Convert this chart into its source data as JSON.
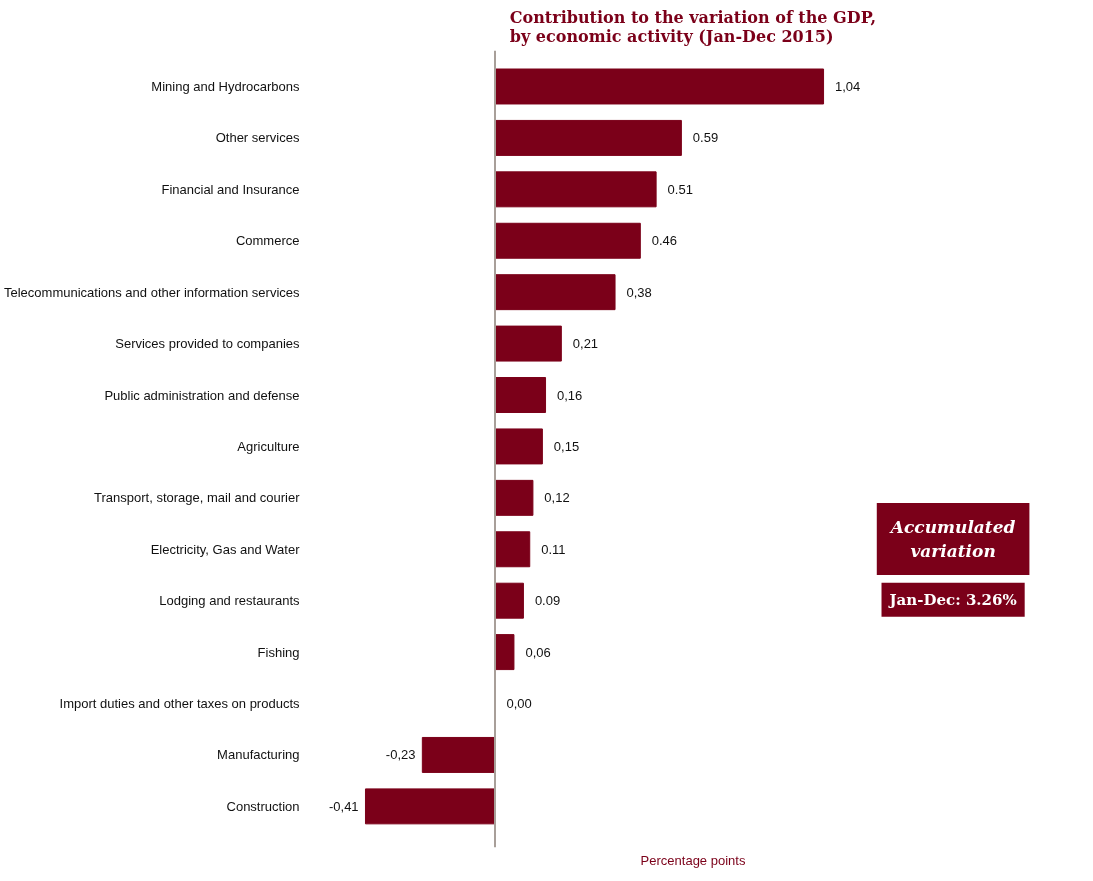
{
  "chart_data": {
    "type": "bar",
    "orientation": "horizontal",
    "title": "Contribution to the variation of the GDP,\nby economic activity (Jan-Dec 2015)",
    "xlabel": "Percentage points",
    "categories": [
      "Mining and Hydrocarbons",
      "Other services",
      "Financial and Insurance",
      "Commerce",
      "Telecommunications and other information services",
      "Services provided to companies",
      "Public administration and defense",
      "Agriculture",
      "Transport, storage, mail and courier",
      "Electricity, Gas and Water",
      "Lodging and restaurants",
      "Fishing",
      "Import duties and other taxes on products",
      "Manufacturing",
      "Construction"
    ],
    "values": [
      1.04,
      0.59,
      0.51,
      0.46,
      0.38,
      0.21,
      0.16,
      0.15,
      0.12,
      0.11,
      0.09,
      0.06,
      0.0,
      -0.23,
      -0.41
    ],
    "value_labels": [
      "1,04",
      "0.59",
      "0.51",
      "0.46",
      "0,38",
      "0,21",
      "0,16",
      "0,15",
      "0,12",
      "0.11",
      "0.09",
      "0,06",
      "0,00",
      "-0,23",
      "-0,41"
    ],
    "color": "#7b0019",
    "annotations": [
      "Accumulated variation",
      "Jan-Dec: 3.26%"
    ],
    "grid": false
  }
}
